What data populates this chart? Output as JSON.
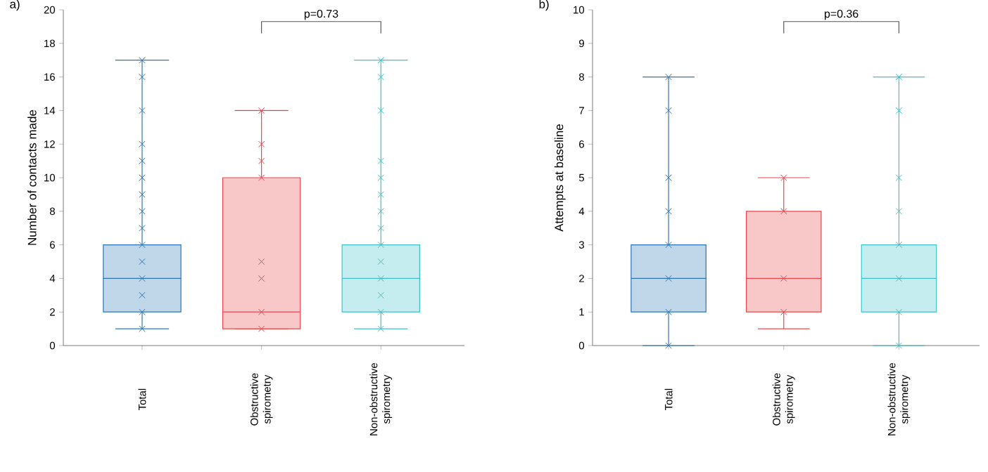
{
  "chart_data": [
    {
      "type": "box",
      "title": "a)",
      "ylabel": "Number of contacts made",
      "categories": [
        "Total",
        "Obstructive spirometry",
        "Non-obstructive spirometry"
      ],
      "colors": [
        "#2e75b6",
        "#e8474c",
        "#3fc1c9"
      ],
      "marker": "cross",
      "ylim": [
        0,
        20
      ],
      "yticks": [
        0,
        2,
        4,
        6,
        8,
        10,
        12,
        14,
        16,
        18,
        20
      ],
      "annotations": [
        "p=0.73"
      ],
      "boxes": [
        {
          "low": 1,
          "q1": 2,
          "median": 4,
          "q3": 6,
          "high": 17
        },
        {
          "low": 1,
          "q1": 1,
          "median": 2,
          "q3": 10,
          "high": 14
        },
        {
          "low": 1,
          "q1": 2,
          "median": 4,
          "q3": 6,
          "high": 17
        }
      ],
      "series": [
        {
          "type": "scatter",
          "color": "#2e75b6",
          "x": [
            "Total",
            "Total",
            "Total",
            "Total",
            "Total",
            "Total",
            "Total",
            "Total",
            "Total",
            "Total",
            "Total",
            "Total",
            "Total",
            "Total",
            "Total"
          ],
          "values": [
            1,
            2,
            3,
            4,
            5,
            6,
            7,
            8,
            9,
            10,
            11,
            12,
            14,
            16,
            17
          ]
        },
        {
          "type": "scatter",
          "color": "#e8474c",
          "x": [
            "Obstructive spirometry",
            "Obstructive spirometry",
            "Obstructive spirometry",
            "Obstructive spirometry",
            "Obstructive spirometry",
            "Obstructive spirometry",
            "Obstructive spirometry",
            "Obstructive spirometry"
          ],
          "values": [
            1,
            2,
            4,
            5,
            10,
            11,
            12,
            14
          ]
        },
        {
          "type": "scatter",
          "color": "#3fc1c9",
          "x": [
            "Non-obstructive spirometry",
            "Non-obstructive spirometry",
            "Non-obstructive spirometry",
            "Non-obstructive spirometry",
            "Non-obstructive spirometry",
            "Non-obstructive spirometry",
            "Non-obstructive spirometry",
            "Non-obstructive spirometry",
            "Non-obstructive spirometry",
            "Non-obstructive spirometry",
            "Non-obstructive spirometry",
            "Non-obstructive spirometry",
            "Non-obstructive spirometry",
            "Non-obstructive spirometry"
          ],
          "values": [
            1,
            2,
            3,
            4,
            5,
            6,
            7,
            8,
            9,
            10,
            11,
            14,
            16,
            17
          ]
        }
      ]
    },
    {
      "type": "box",
      "title": "b)",
      "ylabel": "Attempts at baseline",
      "categories": [
        "Total",
        "Obstructive spirometry",
        "Non-obstructive spirometry"
      ],
      "colors": [
        "#2e75b6",
        "#e8474c",
        "#3fc1c9"
      ],
      "marker": "cross",
      "ylim": [
        0,
        10
      ],
      "yticks": [
        0,
        1,
        2,
        3,
        4,
        5,
        6,
        7,
        8,
        9,
        10
      ],
      "annotations": [
        "p=0.36"
      ],
      "boxes": [
        {
          "low": 0,
          "q1": 1,
          "median": 2,
          "q3": 3,
          "high": 8
        },
        {
          "low": 0.5,
          "q1": 1,
          "median": 2,
          "q3": 4,
          "high": 5
        },
        {
          "low": 0,
          "q1": 1,
          "median": 2,
          "q3": 3,
          "high": 8
        }
      ],
      "series": [
        {
          "type": "scatter",
          "color": "#2e75b6",
          "x": [
            "Total",
            "Total",
            "Total",
            "Total",
            "Total",
            "Total",
            "Total",
            "Total"
          ],
          "values": [
            0,
            1,
            2,
            3,
            4,
            5,
            7,
            8
          ]
        },
        {
          "type": "scatter",
          "color": "#e8474c",
          "x": [
            "Obstructive spirometry",
            "Obstructive spirometry",
            "Obstructive spirometry",
            "Obstructive spirometry"
          ],
          "values": [
            1,
            2,
            4,
            5
          ]
        },
        {
          "type": "scatter",
          "color": "#3fc1c9",
          "x": [
            "Non-obstructive spirometry",
            "Non-obstructive spirometry",
            "Non-obstructive spirometry",
            "Non-obstructive spirometry",
            "Non-obstructive spirometry",
            "Non-obstructive spirometry",
            "Non-obstructive spirometry",
            "Non-obstructive spirometry"
          ],
          "values": [
            0,
            1,
            2,
            3,
            4,
            5,
            7,
            8
          ]
        }
      ]
    }
  ]
}
